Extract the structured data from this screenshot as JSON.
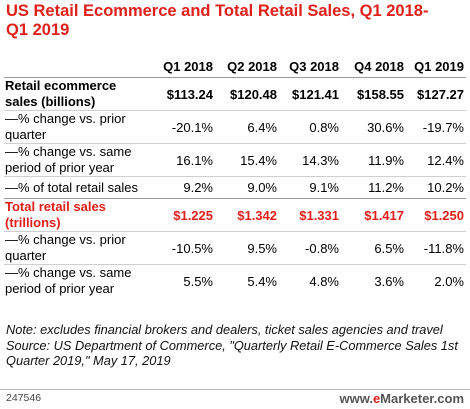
{
  "chart_data": {
    "type": "table",
    "title": "US Retail Ecommerce and Total Retail Sales, Q1 2018-Q1 2019",
    "columns": [
      "Q1 2018",
      "Q2 2018",
      "Q3 2018",
      "Q4 2018",
      "Q1 2019"
    ],
    "rows": [
      {
        "label": "Retail ecommerce sales (billions)",
        "values": [
          "$113.24",
          "$120.48",
          "$121.41",
          "$158.55",
          "$127.27"
        ]
      },
      {
        "label": "—% change vs. prior quarter",
        "values": [
          "-20.1%",
          "6.4%",
          "0.8%",
          "30.6%",
          "-19.7%"
        ]
      },
      {
        "label": "—% change vs. same period of prior year",
        "values": [
          "16.1%",
          "15.4%",
          "14.3%",
          "11.9%",
          "12.4%"
        ]
      },
      {
        "label": "—% of total retail sales",
        "values": [
          "9.2%",
          "9.0%",
          "9.1%",
          "11.2%",
          "10.2%"
        ]
      },
      {
        "label": "Total retail sales (trillions)",
        "values": [
          "$1.225",
          "$1.342",
          "$1.331",
          "$1.417",
          "$1.250"
        ]
      },
      {
        "label": "—% change vs. prior quarter",
        "values": [
          "-10.5%",
          "9.5%",
          "-0.8%",
          "6.5%",
          "-11.8%"
        ]
      },
      {
        "label": "—% change vs. same period of prior year",
        "values": [
          "5.5%",
          "5.4%",
          "4.8%",
          "3.6%",
          "2.0%"
        ]
      }
    ],
    "note": "Note: excludes financial brokers and dealers, ticket sales agencies and travel",
    "source": "Source: US Department of Commerce, \"Quarterly Retail E-Commerce Sales 1st Quarter 2019,\" May 17, 2019",
    "colors": {
      "accent": "#e0201b"
    }
  },
  "footer": {
    "id": "247546",
    "brand_prefix": "www.",
    "brand_e": "e",
    "brand_rest": "Marketer",
    "brand_suffix": ".com"
  }
}
